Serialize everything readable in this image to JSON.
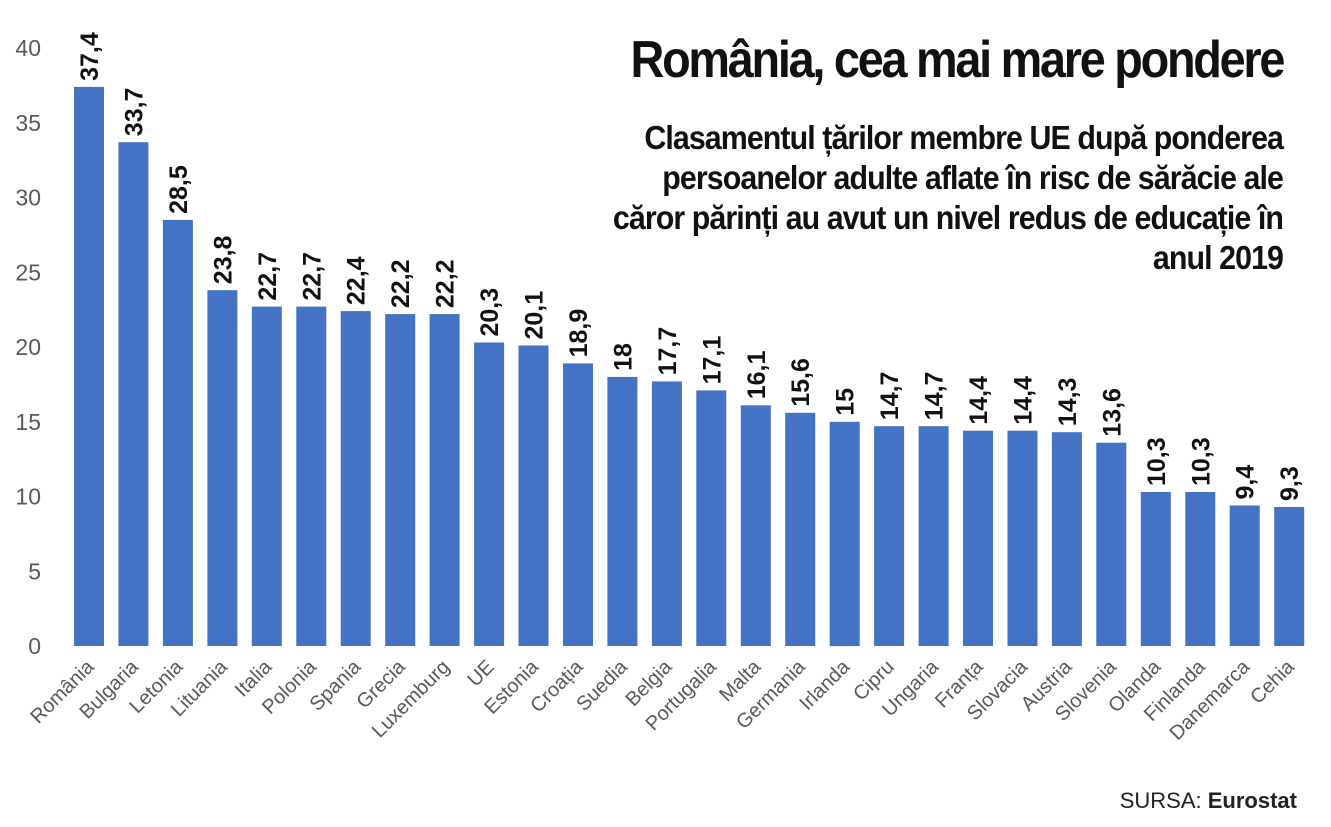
{
  "header": {
    "title": "România, cea mai mare pondere",
    "subtitle": "Clasamentul țărilor membre UE după ponderea persoanelor adulte aflate în risc de sărăcie ale căror părinți au avut un nivel redus de educație în anul 2019"
  },
  "source": {
    "label": "SURSA:",
    "name": "Eurostat"
  },
  "colors": {
    "bar": "#4472C4",
    "text": "#111111",
    "axis": "#595959"
  },
  "chart_data": {
    "type": "bar",
    "title": "România, cea mai mare pondere",
    "categories": [
      "România",
      "Bulgaria",
      "Letonia",
      "Lituania",
      "Italia",
      "Polonia",
      "Spania",
      "Grecia",
      "Luxemburg",
      "UE",
      "Estonia",
      "Croația",
      "Suedia",
      "Belgia",
      "Portugalia",
      "Malta",
      "Germania",
      "Irlanda",
      "Cipru",
      "Ungaria",
      "Franța",
      "Slovacia",
      "Austria",
      "Slovenia",
      "Olanda",
      "Finlanda",
      "Danemarca",
      "Cehia"
    ],
    "values": [
      37.4,
      33.7,
      28.5,
      23.8,
      22.7,
      22.7,
      22.4,
      22.2,
      22.2,
      20.3,
      20.1,
      18.9,
      18,
      17.7,
      17.1,
      16.1,
      15.6,
      15,
      14.7,
      14.7,
      14.4,
      14.4,
      14.3,
      13.6,
      10.3,
      10.3,
      9.4,
      9.3
    ],
    "value_labels": [
      "37,4",
      "33,7",
      "28,5",
      "23,8",
      "22,7",
      "22,7",
      "22,4",
      "22,2",
      "22,2",
      "20,3",
      "20,1",
      "18,9",
      "18",
      "17,7",
      "17,1",
      "16,1",
      "15,6",
      "15",
      "14,7",
      "14,7",
      "14,4",
      "14,4",
      "14,3",
      "13,6",
      "10,3",
      "10,3",
      "9,4",
      "9,3"
    ],
    "yticks": [
      0,
      5,
      10,
      15,
      20,
      25,
      30,
      35,
      40
    ],
    "ylim": [
      0,
      40
    ],
    "xlabel": "",
    "ylabel": "",
    "grid": false,
    "legend": "none"
  }
}
